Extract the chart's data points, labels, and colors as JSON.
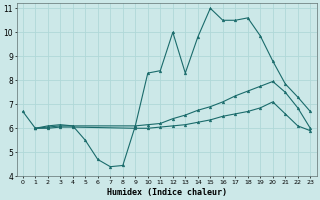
{
  "title": "",
  "xlabel": "Humidex (Indice chaleur)",
  "xlim": [
    -0.5,
    23.5
  ],
  "ylim": [
    4,
    11.2
  ],
  "yticks": [
    4,
    5,
    6,
    7,
    8,
    9,
    10,
    11
  ],
  "xticks": [
    0,
    1,
    2,
    3,
    4,
    5,
    6,
    7,
    8,
    9,
    10,
    11,
    12,
    13,
    14,
    15,
    16,
    17,
    18,
    19,
    20,
    21,
    22,
    23
  ],
  "bg_color": "#cce8e8",
  "line_color": "#1a6b6b",
  "grid_color": "#b0d8d8",
  "series": [
    {
      "x": [
        0,
        1,
        2,
        3,
        4,
        5,
        6,
        7,
        8,
        9,
        10,
        11,
        12,
        13,
        14,
        15,
        16,
        17,
        18,
        19,
        20,
        21,
        22,
        23
      ],
      "y": [
        6.7,
        6.0,
        6.1,
        6.15,
        6.1,
        5.5,
        4.7,
        4.4,
        4.45,
        6.1,
        8.3,
        8.4,
        10.0,
        8.3,
        9.8,
        11.0,
        10.5,
        10.5,
        10.6,
        9.85,
        8.8,
        7.85,
        7.3,
        6.7
      ]
    },
    {
      "x": [
        1,
        2,
        3,
        4,
        9,
        10,
        11,
        12,
        13,
        14,
        15,
        16,
        17,
        18,
        19,
        20,
        21,
        22,
        23
      ],
      "y": [
        6.0,
        6.05,
        6.1,
        6.1,
        6.1,
        6.15,
        6.2,
        6.4,
        6.55,
        6.75,
        6.9,
        7.1,
        7.35,
        7.55,
        7.75,
        7.95,
        7.5,
        6.85,
        6.0
      ]
    },
    {
      "x": [
        1,
        2,
        3,
        4,
        9,
        10,
        11,
        12,
        13,
        14,
        15,
        16,
        17,
        18,
        19,
        20,
        21,
        22,
        23
      ],
      "y": [
        6.0,
        6.0,
        6.05,
        6.05,
        6.0,
        6.0,
        6.05,
        6.1,
        6.15,
        6.25,
        6.35,
        6.5,
        6.6,
        6.7,
        6.85,
        7.1,
        6.6,
        6.1,
        5.9
      ]
    }
  ]
}
